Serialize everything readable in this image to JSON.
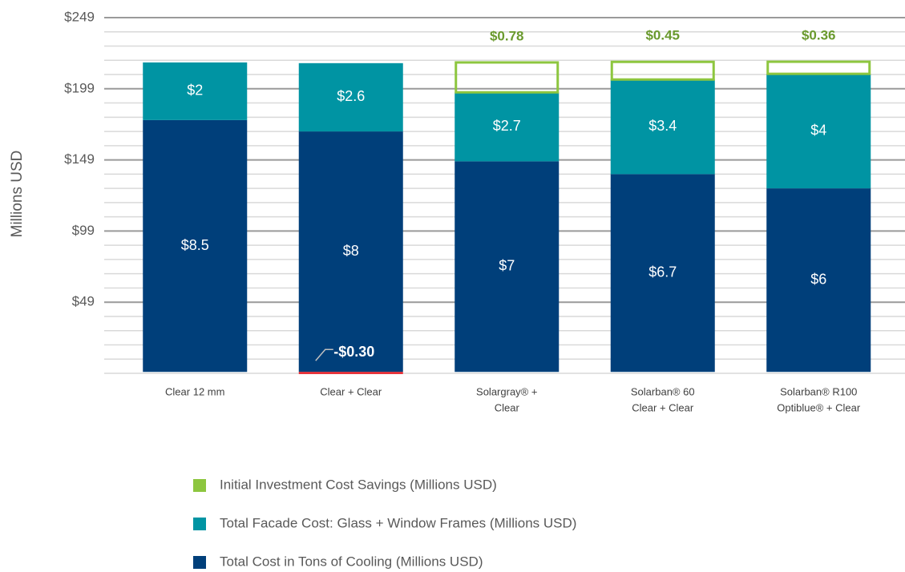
{
  "chart_data": {
    "type": "stacked-bar",
    "y_axis_label": "Millions  USD",
    "categories": [
      [
        "Clear 12 mm"
      ],
      [
        "Clear + Clear"
      ],
      [
        "Solargray® +",
        "Clear"
      ],
      [
        "Solarban® 60",
        "Clear + Clear"
      ],
      [
        "Solarban® R100",
        "Optiblue® + Clear"
      ]
    ],
    "series": [
      {
        "name": "Total Cost in Tons of Cooling (Millions USD)",
        "color": "#003f7a",
        "values": [
          177,
          169,
          148,
          139,
          129
        ],
        "value_labels": [
          "$8.5",
          "$8",
          "$7",
          "$6.7",
          "$6"
        ]
      },
      {
        "name": "Total Facade Cost: Glass + Window Frames (Millions USD)",
        "color": "#0094a3",
        "values": [
          40.5,
          48,
          48.5,
          66.5,
          80.5
        ],
        "value_labels": [
          "$2",
          "$2.6",
          "$2.7",
          "$3.4",
          "$4"
        ]
      },
      {
        "name": "Initial Investment Cost Savings (Millions USD)",
        "color": "#8dc63f",
        "negative_color": "#e8262e",
        "values": [
          null,
          -1.5,
          21,
          12.4,
          8.5
        ],
        "value_labels": [
          null,
          "-$0.30",
          "$0.78",
          "$0.45",
          "$0.36"
        ]
      }
    ],
    "legend_order": [
      2,
      1,
      0
    ],
    "ylim": [
      -1,
      249
    ],
    "yticks": [
      {
        "value": 49,
        "label": "$49"
      },
      {
        "value": 99,
        "label": "$99"
      },
      {
        "value": 149,
        "label": "$149"
      },
      {
        "value": 199,
        "label": "$199"
      },
      {
        "value": 249,
        "label": "$249"
      }
    ],
    "minor_yticks": [
      -1,
      9,
      19,
      29,
      39,
      59,
      69,
      79,
      89,
      109,
      119,
      129,
      139,
      159,
      169,
      179,
      189,
      209,
      219,
      229,
      239
    ],
    "grid": true
  }
}
